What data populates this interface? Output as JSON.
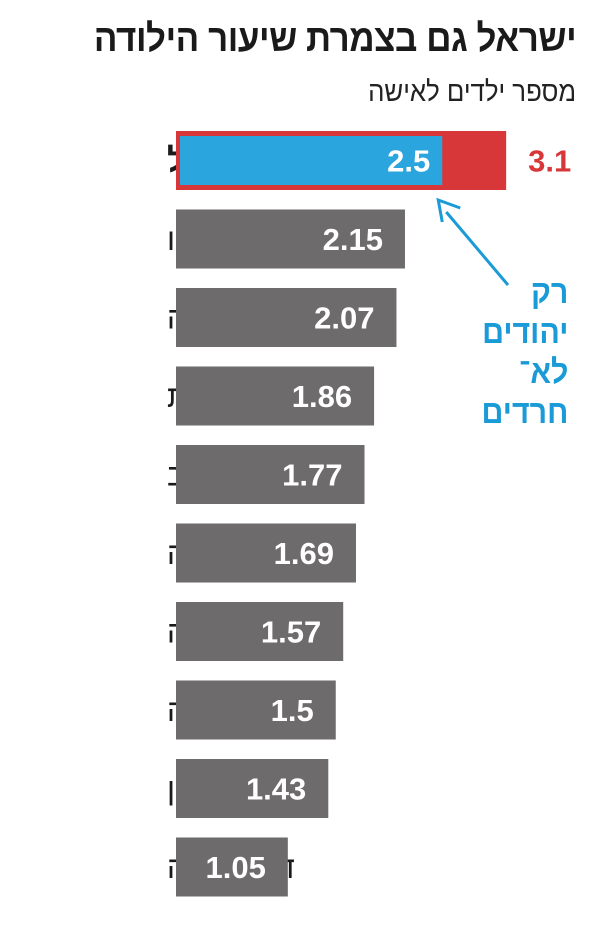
{
  "header": {
    "title": "ישראל גם בצמרת שיעור הילודה",
    "subtitle": "מספר ילדים לאישה"
  },
  "annotation": {
    "text": "רק\nיהודים\nלא־\nחרדים"
  },
  "chart_data": {
    "type": "bar",
    "orientation": "horizontal",
    "title": "ישראל גם בצמרת שיעור הילודה",
    "subtitle": "מספר ילדים לאישה",
    "categories": [
      "ישראל",
      "מקסיקו",
      "טורקיה",
      "צרפת",
      "ארה\"ב",
      "צ׳כיה",
      "גרמניה",
      "קנדה",
      "יפן",
      "ד׳ קוריאה"
    ],
    "values": [
      3.1,
      2.15,
      2.07,
      1.86,
      1.77,
      1.69,
      1.57,
      1.5,
      1.43,
      1.05
    ],
    "value_labels": [
      "3.1",
      "2.15",
      "2.07",
      "1.86",
      "1.77",
      "1.69",
      "1.57",
      "1.5",
      "1.43",
      "1.05"
    ],
    "highlight": {
      "category": "ישראל",
      "value": 2.5,
      "label": "2.5"
    },
    "colors": {
      "bar": "#6d6b6b",
      "highlight_total": "#d8373a",
      "highlight_sub": "#2aa5dd",
      "annotation": "#1a9ad6",
      "highlight_value_text": "#d8373a"
    }
  }
}
